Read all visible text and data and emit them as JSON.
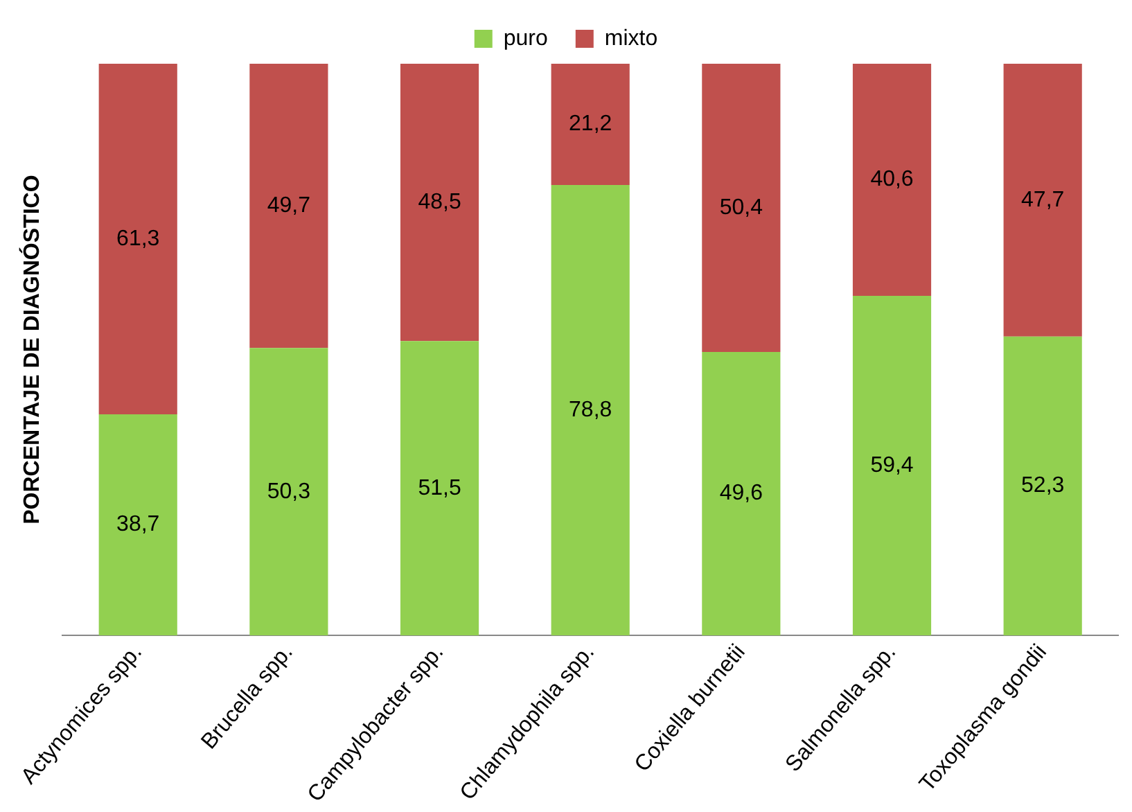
{
  "chart_data": {
    "type": "bar",
    "stacked": true,
    "ylabel": "PORCENTAJE DE DIAGNÓSTICO",
    "categories": [
      "Actynomices spp.",
      "Brucella spp.",
      "Campylobacter spp.",
      "Chlamydophila spp.",
      "Coxiella burnetii",
      "Salmonella spp.",
      "Toxoplasma gondii"
    ],
    "series": [
      {
        "name": "puro",
        "color": "#92d050",
        "values": [
          38.7,
          50.3,
          51.5,
          78.8,
          49.6,
          59.4,
          52.3
        ],
        "value_labels": [
          "38,7",
          "50,3",
          "51,5",
          "78,8",
          "49,6",
          "59,4",
          "52,3"
        ]
      },
      {
        "name": "mixto",
        "color": "#c0504d",
        "values": [
          61.3,
          49.7,
          48.5,
          21.2,
          50.4,
          40.6,
          47.7
        ],
        "value_labels": [
          "61,3",
          "49,7",
          "48,5",
          "21,2",
          "50,4",
          "40,6",
          "47,7"
        ]
      }
    ],
    "tick_labels": "x",
    "legend": "top",
    "grid": false
  }
}
